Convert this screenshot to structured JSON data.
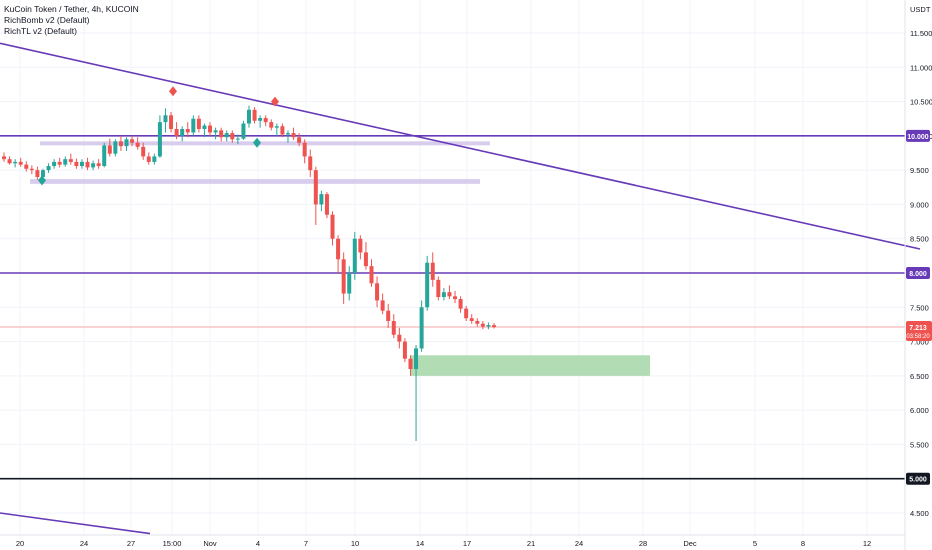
{
  "header": {
    "symbol_line": "KuCoin Token / Tether, 4h, KUCOIN",
    "indicators": [
      "RichBomb v2 (Default)",
      "RichTL v2 (Default)"
    ]
  },
  "axis": {
    "currency": "USDT"
  },
  "colors": {
    "up": "#26a69a",
    "down": "#ef5350",
    "trendline": "#673ab7",
    "zone_purple": "#d1c4e9",
    "zone_green": "#a5d6a7",
    "support_black": "#131722",
    "price_line": "#f7a6a6",
    "price_tag": "#ef5350"
  },
  "price_tag": {
    "value": "7.213",
    "countdown": "03:58:20"
  },
  "chart_data": {
    "type": "candlestick",
    "title": "KuCoin Token / Tether, 4h, KUCOIN",
    "ylabel": "USDT",
    "ylim": [
      4.3,
      11.95
    ],
    "y_ticks": [
      "4.500",
      "5.000",
      "5.500",
      "6.000",
      "6.500",
      "7.000",
      "7.500",
      "8.000",
      "8.500",
      "9.000",
      "9.500",
      "10.000",
      "10.500",
      "11.000",
      "11.500"
    ],
    "x_ticks": [
      "20",
      "24",
      "27",
      "15:00",
      "Nov",
      "4",
      "7",
      "10",
      "14",
      "17",
      "21",
      "24",
      "28",
      "Dec",
      "5",
      "8",
      "12"
    ],
    "horizontal_levels": [
      {
        "price": 10.0,
        "label": "10.000",
        "color": "#673ab7"
      },
      {
        "price": 8.0,
        "label": "8.000",
        "color": "#673ab7"
      },
      {
        "price": 5.0,
        "label": "5.000",
        "color": "#131722"
      }
    ],
    "zones": [
      {
        "color": "#d1c4e9",
        "from": "27",
        "to": "20",
        "price_low": 9.87,
        "price_high": 9.92
      },
      {
        "color": "#d1c4e9",
        "from": "21",
        "to": "17",
        "price_low": 9.3,
        "price_high": 9.37
      },
      {
        "color": "#a5d6a7",
        "from": "14",
        "to": "28",
        "price_low": 6.5,
        "price_high": 6.8
      }
    ],
    "trendlines": [
      {
        "color": "#673ab7",
        "from": {
          "price": 11.35
        },
        "to": {
          "price": 8.35
        }
      },
      {
        "color": "#673ab7",
        "from": {
          "price": 4.5
        },
        "to": {
          "price": 4.2
        }
      }
    ],
    "markers": [
      {
        "kind": "sell",
        "price": 10.65
      },
      {
        "kind": "sell",
        "price": 10.5
      },
      {
        "kind": "buy",
        "price": 9.9
      },
      {
        "kind": "buy",
        "price": 9.35
      }
    ],
    "last_price": 7.213,
    "candles": [
      [
        9.7,
        9.76,
        9.62,
        9.66
      ],
      [
        9.66,
        9.7,
        9.58,
        9.6
      ],
      [
        9.6,
        9.66,
        9.54,
        9.62
      ],
      [
        9.62,
        9.68,
        9.55,
        9.58
      ],
      [
        9.58,
        9.63,
        9.48,
        9.52
      ],
      [
        9.52,
        9.57,
        9.44,
        9.5
      ],
      [
        9.5,
        9.55,
        9.36,
        9.4
      ],
      [
        9.4,
        9.52,
        9.36,
        9.5
      ],
      [
        9.5,
        9.6,
        9.46,
        9.56
      ],
      [
        9.56,
        9.66,
        9.52,
        9.62
      ],
      [
        9.62,
        9.68,
        9.54,
        9.58
      ],
      [
        9.58,
        9.7,
        9.55,
        9.66
      ],
      [
        9.66,
        9.74,
        9.58,
        9.62
      ],
      [
        9.62,
        9.67,
        9.52,
        9.56
      ],
      [
        9.56,
        9.66,
        9.52,
        9.62
      ],
      [
        9.62,
        9.68,
        9.5,
        9.54
      ],
      [
        9.54,
        9.64,
        9.5,
        9.6
      ],
      [
        9.6,
        9.66,
        9.52,
        9.56
      ],
      [
        9.56,
        9.9,
        9.54,
        9.86
      ],
      [
        9.86,
        9.96,
        9.7,
        9.74
      ],
      [
        9.74,
        9.95,
        9.7,
        9.92
      ],
      [
        9.92,
        10.0,
        9.78,
        9.85
      ],
      [
        9.85,
        9.98,
        9.78,
        9.95
      ],
      [
        9.95,
        10.0,
        9.85,
        9.9
      ],
      [
        9.9,
        9.98,
        9.8,
        9.84
      ],
      [
        9.84,
        9.9,
        9.65,
        9.7
      ],
      [
        9.7,
        9.76,
        9.58,
        9.62
      ],
      [
        9.62,
        9.74,
        9.58,
        9.7
      ],
      [
        9.7,
        10.3,
        9.68,
        10.2
      ],
      [
        10.2,
        10.4,
        10.05,
        10.3
      ],
      [
        10.3,
        10.35,
        10.05,
        10.1
      ],
      [
        10.1,
        10.2,
        9.95,
        10.0
      ],
      [
        10.0,
        10.14,
        9.92,
        10.1
      ],
      [
        10.1,
        10.2,
        9.98,
        10.05
      ],
      [
        10.05,
        10.3,
        10.0,
        10.25
      ],
      [
        10.25,
        10.3,
        10.05,
        10.1
      ],
      [
        10.1,
        10.18,
        9.98,
        10.15
      ],
      [
        10.15,
        10.2,
        10.0,
        10.05
      ],
      [
        10.05,
        10.12,
        9.95,
        10.08
      ],
      [
        10.08,
        10.12,
        9.92,
        9.98
      ],
      [
        9.98,
        10.08,
        9.92,
        10.04
      ],
      [
        10.04,
        10.08,
        9.9,
        9.95
      ],
      [
        9.95,
        10.02,
        9.88,
        9.96
      ],
      [
        9.96,
        10.22,
        9.94,
        10.18
      ],
      [
        10.18,
        10.44,
        10.12,
        10.38
      ],
      [
        10.38,
        10.42,
        10.18,
        10.22
      ],
      [
        10.22,
        10.3,
        10.12,
        10.26
      ],
      [
        10.26,
        10.3,
        10.14,
        10.2
      ],
      [
        10.2,
        10.24,
        10.08,
        10.12
      ],
      [
        10.12,
        10.18,
        10.0,
        10.14
      ],
      [
        10.14,
        10.18,
        9.98,
        10.02
      ],
      [
        10.02,
        10.08,
        9.9,
        10.04
      ],
      [
        10.04,
        10.12,
        9.94,
        9.98
      ],
      [
        9.98,
        10.04,
        9.85,
        9.9
      ],
      [
        9.9,
        9.95,
        9.6,
        9.7
      ],
      [
        9.7,
        9.8,
        9.4,
        9.5
      ],
      [
        9.5,
        9.55,
        8.7,
        9.0
      ],
      [
        9.0,
        9.2,
        8.9,
        9.15
      ],
      [
        9.15,
        9.18,
        8.8,
        8.85
      ],
      [
        8.85,
        8.9,
        8.4,
        8.5
      ],
      [
        8.5,
        8.55,
        8.0,
        8.2
      ],
      [
        8.2,
        8.3,
        7.55,
        7.7
      ],
      [
        7.7,
        8.1,
        7.6,
        8.0
      ],
      [
        8.0,
        8.6,
        7.9,
        8.5
      ],
      [
        8.5,
        8.55,
        8.2,
        8.3
      ],
      [
        8.3,
        8.45,
        8.05,
        8.1
      ],
      [
        8.1,
        8.2,
        7.8,
        7.85
      ],
      [
        7.85,
        7.95,
        7.5,
        7.6
      ],
      [
        7.6,
        7.7,
        7.4,
        7.45
      ],
      [
        7.45,
        7.55,
        7.2,
        7.3
      ],
      [
        7.3,
        7.4,
        7.05,
        7.1
      ],
      [
        7.1,
        7.2,
        6.9,
        7.0
      ],
      [
        7.0,
        7.05,
        6.7,
        6.75
      ],
      [
        6.75,
        6.8,
        6.5,
        6.6
      ],
      [
        6.6,
        6.95,
        5.55,
        6.9
      ],
      [
        6.9,
        7.6,
        6.85,
        7.5
      ],
      [
        7.5,
        8.25,
        7.45,
        8.15
      ],
      [
        8.15,
        8.3,
        7.8,
        7.9
      ],
      [
        7.9,
        7.95,
        7.6,
        7.65
      ],
      [
        7.65,
        7.78,
        7.6,
        7.72
      ],
      [
        7.72,
        7.82,
        7.62,
        7.66
      ],
      [
        7.66,
        7.74,
        7.56,
        7.62
      ],
      [
        7.62,
        7.66,
        7.42,
        7.48
      ],
      [
        7.48,
        7.52,
        7.3,
        7.34
      ],
      [
        7.34,
        7.4,
        7.26,
        7.3
      ],
      [
        7.3,
        7.34,
        7.22,
        7.26
      ],
      [
        7.26,
        7.3,
        7.18,
        7.22
      ],
      [
        7.22,
        7.28,
        7.18,
        7.24
      ],
      [
        7.24,
        7.27,
        7.19,
        7.213
      ]
    ]
  }
}
